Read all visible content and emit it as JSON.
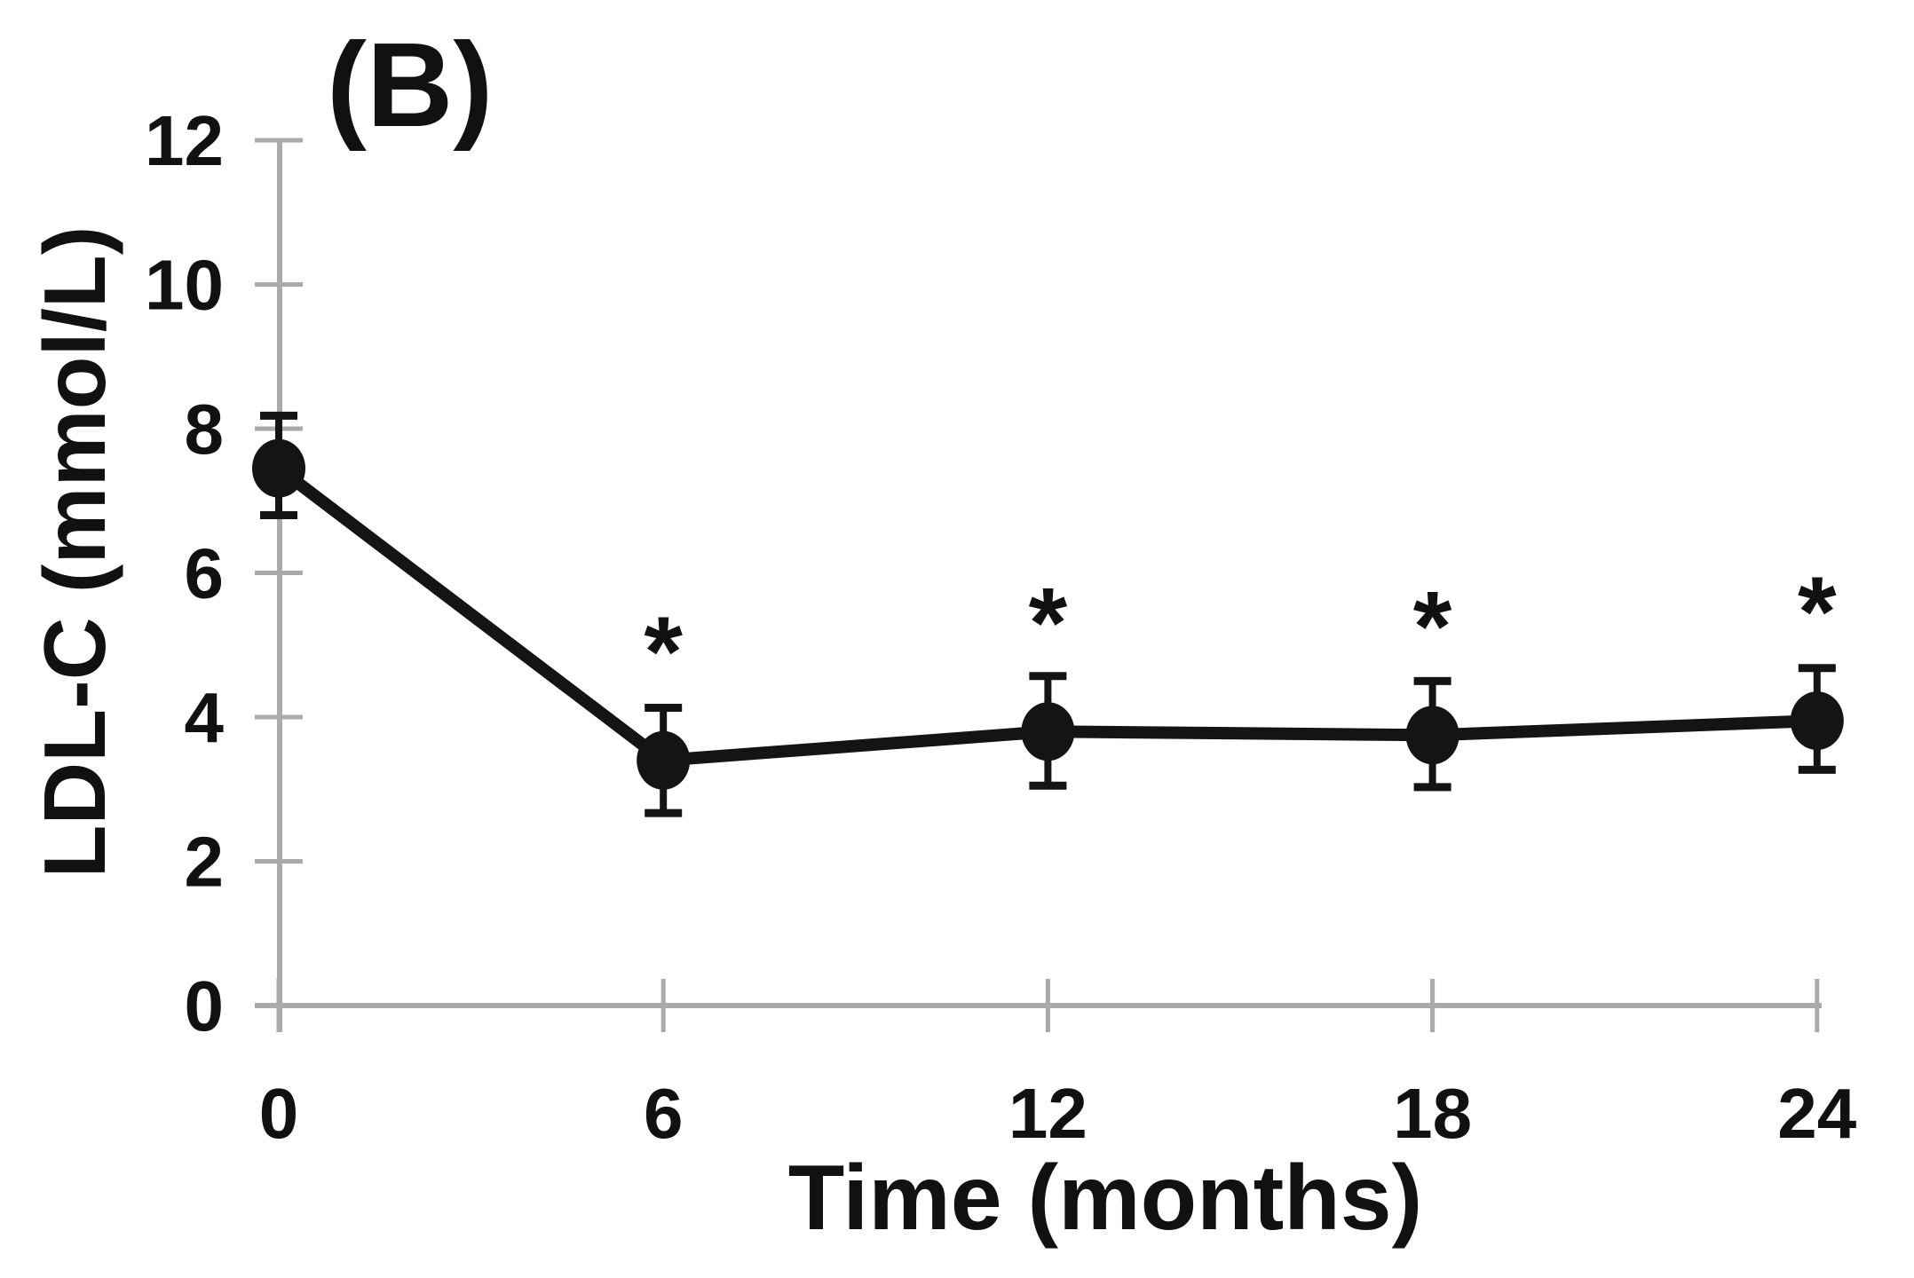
{
  "figure": {
    "panel_label": "(B)",
    "background_color": "#ffffff"
  },
  "chart_data": {
    "type": "line",
    "title": "(B)",
    "xlabel": "Time (months)",
    "ylabel": "LDL-C (mmol/L)",
    "x": [
      0,
      6,
      12,
      18,
      24
    ],
    "xticks": [
      "0",
      "6",
      "12",
      "18",
      "24"
    ],
    "yticks": [
      "0",
      "2",
      "4",
      "6",
      "8",
      "10",
      "12"
    ],
    "ytick_values": [
      0,
      2,
      4,
      6,
      8,
      10,
      12
    ],
    "xlim": [
      0,
      24
    ],
    "ylim": [
      0,
      12
    ],
    "grid": false,
    "legend_position": "none",
    "series": [
      {
        "name": "LDL-C",
        "marker": "filled-circle",
        "values": [
          7.45,
          3.4,
          3.8,
          3.75,
          3.95
        ],
        "err_up": [
          0.73,
          0.73,
          0.77,
          0.75,
          0.73
        ],
        "err_down": [
          0.65,
          0.73,
          0.75,
          0.72,
          0.68
        ],
        "significant": [
          false,
          true,
          true,
          true,
          true
        ],
        "significance_marker": "*"
      }
    ],
    "colors": {
      "data": "#141414",
      "axis": "#aaaaaa",
      "text": "#111111"
    }
  }
}
